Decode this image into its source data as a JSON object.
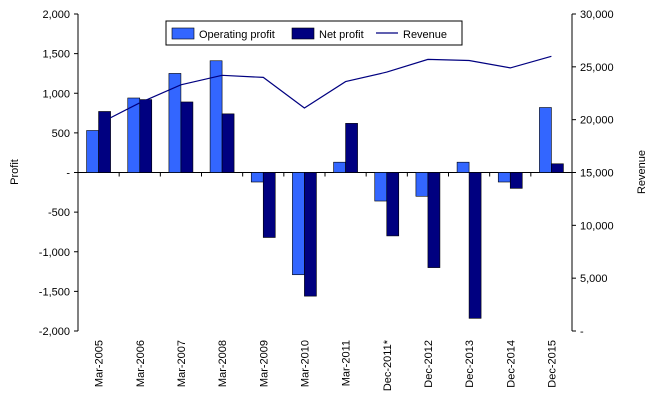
{
  "chart_data": {
    "type": "bar",
    "categories": [
      "Mar-2005",
      "Mar-2006",
      "Mar-2007",
      "Mar-2008",
      "Mar-2009",
      "Mar-2010",
      "Mar-2011",
      "Dec-2011*",
      "Dec-2012",
      "Dec-2013",
      "Dec-2014",
      "Dec-2015"
    ],
    "series": [
      {
        "name": "Operating profit",
        "type": "bar",
        "axis": "left",
        "color": "#3366ff",
        "values": [
          530,
          940,
          1250,
          1410,
          -120,
          -1290,
          130,
          -360,
          -300,
          130,
          -120,
          820
        ]
      },
      {
        "name": "Net profit",
        "type": "bar",
        "axis": "left",
        "color": "#000080",
        "values": [
          770,
          920,
          890,
          740,
          -820,
          -1560,
          620,
          -800,
          -1200,
          -1840,
          -200,
          110
        ]
      },
      {
        "name": "Revenue",
        "type": "line",
        "axis": "right",
        "color": "#000080",
        "values": [
          19600,
          21600,
          23300,
          24200,
          24000,
          21100,
          23600,
          24500,
          25700,
          25600,
          24900,
          26000
        ]
      }
    ],
    "ylabel": "Profit",
    "y2label": "Revenue",
    "ylim": [
      -2000,
      2000
    ],
    "y2lim": [
      0,
      30000
    ],
    "yticks": [
      "2,000",
      "1,500",
      "1,000",
      "500",
      "-",
      "-500",
      "-1,000",
      "-1,500",
      "-2,000"
    ],
    "y2ticks": [
      "30,000",
      "25,000",
      "20,000",
      "15,000",
      "10,000",
      "5,000",
      "-"
    ],
    "legend": "top-center",
    "grid": false
  }
}
